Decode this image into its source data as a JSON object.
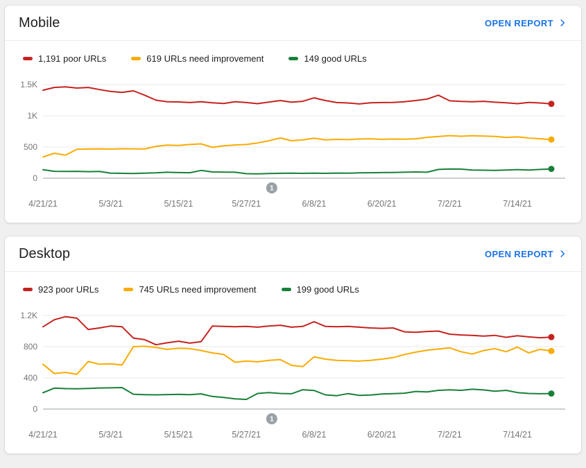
{
  "colors": {
    "poor": "#C5221F",
    "needs_improvement": "#F9AB00",
    "good": "#188038",
    "link_blue": "#1A73E8",
    "axis_label": "#757575",
    "gridline": "#E8EAED",
    "axis_line": "#9AA0A6",
    "annotation_fill": "#9AA0A6",
    "card_background": "#FFFFFF",
    "page_background": "#F0F0F0",
    "title_text": "#202124"
  },
  "cards": [
    {
      "title": "Mobile",
      "open_report_label": "OPEN REPORT",
      "legend": [
        {
          "label": "1,191 poor URLs"
        },
        {
          "label": "619 URLs need improvement"
        },
        {
          "label": "149 good URLs"
        }
      ]
    },
    {
      "title": "Desktop",
      "open_report_label": "OPEN REPORT",
      "legend": [
        {
          "label": "923 poor URLs"
        },
        {
          "label": "745 URLs need improvement"
        },
        {
          "label": "199 good URLs"
        }
      ]
    }
  ],
  "chart_data": [
    {
      "type": "line",
      "title": "Mobile",
      "x_start_date": "4/21/21",
      "x_end_date": "7/20/21",
      "sample_step_days": 2,
      "total_days": 90,
      "x_tick_days": [
        0,
        12,
        24,
        36,
        48,
        60,
        72,
        84
      ],
      "x_tick_labels": [
        "4/21/21",
        "5/3/21",
        "5/15/21",
        "5/27/21",
        "6/8/21",
        "6/20/21",
        "7/2/21",
        "7/14/21"
      ],
      "y_max": 1500,
      "y_ticks": [
        {
          "v": 0,
          "label": "0"
        },
        {
          "v": 500,
          "label": "500"
        },
        {
          "v": 1000,
          "label": "1K"
        },
        {
          "v": 1500,
          "label": "1.5K"
        }
      ],
      "annotation": {
        "day": 40.5,
        "label": "1"
      },
      "series": [
        {
          "name": "poor URLs",
          "current": 1191,
          "color": "#C5221F",
          "values": [
            1410,
            1455,
            1465,
            1445,
            1455,
            1420,
            1390,
            1375,
            1400,
            1330,
            1250,
            1225,
            1222,
            1212,
            1225,
            1208,
            1198,
            1225,
            1212,
            1195,
            1220,
            1245,
            1218,
            1232,
            1288,
            1245,
            1212,
            1205,
            1190,
            1208,
            1212,
            1215,
            1225,
            1245,
            1268,
            1330,
            1240,
            1230,
            1225,
            1232,
            1218,
            1208,
            1195,
            1215,
            1205,
            1191
          ]
        },
        {
          "name": "URLs need improvement",
          "current": 619,
          "color": "#F9AB00",
          "values": [
            340,
            400,
            370,
            465,
            468,
            470,
            467,
            472,
            470,
            468,
            510,
            530,
            525,
            540,
            550,
            495,
            520,
            532,
            540,
            565,
            600,
            645,
            600,
            615,
            640,
            615,
            622,
            618,
            628,
            632,
            622,
            628,
            625,
            632,
            655,
            668,
            682,
            672,
            680,
            675,
            670,
            652,
            662,
            645,
            632,
            619
          ]
        },
        {
          "name": "good URLs",
          "current": 149,
          "color": "#188038",
          "values": [
            135,
            110,
            108,
            110,
            105,
            108,
            80,
            78,
            75,
            80,
            85,
            95,
            90,
            88,
            125,
            100,
            98,
            95,
            72,
            70,
            75,
            78,
            80,
            78,
            80,
            78,
            82,
            80,
            85,
            88,
            90,
            92,
            95,
            100,
            95,
            140,
            148,
            145,
            130,
            128,
            125,
            130,
            138,
            130,
            140,
            149
          ]
        }
      ]
    },
    {
      "type": "line",
      "title": "Desktop",
      "x_start_date": "4/21/21",
      "x_end_date": "7/20/21",
      "sample_step_days": 2,
      "total_days": 90,
      "x_tick_days": [
        0,
        12,
        24,
        36,
        48,
        60,
        72,
        84
      ],
      "x_tick_labels": [
        "4/21/21",
        "5/3/21",
        "5/15/21",
        "5/27/21",
        "6/8/21",
        "6/20/21",
        "7/2/21",
        "7/14/21"
      ],
      "y_max": 1200,
      "y_ticks": [
        {
          "v": 0,
          "label": "0"
        },
        {
          "v": 400,
          "label": "400"
        },
        {
          "v": 800,
          "label": "800"
        },
        {
          "v": 1200,
          "label": "1.2K"
        }
      ],
      "annotation": {
        "day": 40.5,
        "label": "1"
      },
      "series": [
        {
          "name": "poor URLs",
          "current": 923,
          "color": "#C5221F",
          "values": [
            1055,
            1145,
            1185,
            1165,
            1020,
            1040,
            1065,
            1055,
            910,
            890,
            825,
            850,
            870,
            845,
            865,
            1065,
            1060,
            1055,
            1060,
            1050,
            1065,
            1075,
            1050,
            1060,
            1120,
            1060,
            1055,
            1060,
            1050,
            1040,
            1035,
            1040,
            990,
            985,
            995,
            1000,
            960,
            950,
            945,
            935,
            945,
            920,
            940,
            925,
            915,
            923
          ]
        },
        {
          "name": "URLs need improvement",
          "current": 745,
          "color": "#F9AB00",
          "values": [
            575,
            455,
            470,
            445,
            610,
            575,
            580,
            565,
            800,
            805,
            790,
            765,
            780,
            775,
            750,
            720,
            700,
            600,
            615,
            605,
            625,
            635,
            560,
            545,
            670,
            640,
            625,
            620,
            615,
            625,
            640,
            660,
            700,
            730,
            755,
            770,
            785,
            735,
            705,
            750,
            775,
            735,
            795,
            720,
            765,
            745
          ]
        },
        {
          "name": "good URLs",
          "current": 199,
          "color": "#188038",
          "values": [
            210,
            268,
            262,
            260,
            265,
            270,
            272,
            276,
            190,
            185,
            182,
            186,
            188,
            184,
            195,
            162,
            148,
            132,
            124,
            200,
            212,
            200,
            196,
            248,
            238,
            182,
            172,
            198,
            176,
            180,
            194,
            198,
            204,
            226,
            220,
            240,
            246,
            240,
            254,
            245,
            228,
            240,
            212,
            200,
            196,
            199
          ]
        }
      ]
    }
  ]
}
